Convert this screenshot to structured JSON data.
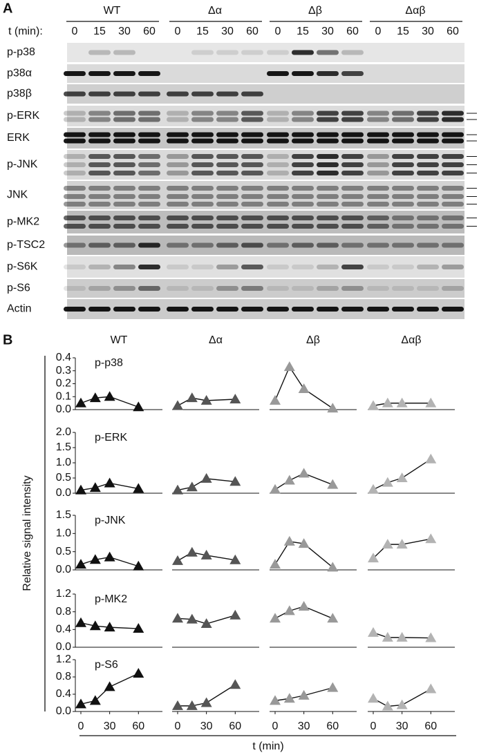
{
  "panel_a": {
    "label": "A",
    "groups": [
      "WT",
      "Δα",
      "Δβ",
      "Δαβ"
    ],
    "time_label": "t (min):",
    "times": [
      "0",
      "15",
      "30",
      "60"
    ],
    "rows": [
      "p-p38",
      "p38α",
      "p38β",
      "p-ERK",
      "ERK",
      "p-JNK",
      "JNK",
      "p-MK2",
      "p-TSC2",
      "p-S6K",
      "p-S6",
      "Actin"
    ]
  },
  "panel_b": {
    "label": "B",
    "ylabel": "Relative signal intensity",
    "xlabel": "t (min)"
  },
  "chart_data": [
    {
      "type": "line",
      "title": "p-p38",
      "x": [
        0,
        15,
        30,
        60
      ],
      "xlim": [
        0,
        85
      ],
      "ylim": [
        0,
        0.4
      ],
      "yticks": [
        {
          "value": 0,
          "label": "0.0"
        },
        0.1,
        0.2,
        0.3,
        0.4
      ],
      "series": [
        {
          "name": "WT",
          "color": "#111111",
          "values": [
            0.05,
            0.09,
            0.1,
            0.02
          ]
        },
        {
          "name": "Δα",
          "color": "#555555",
          "values": [
            0.03,
            0.09,
            0.07,
            0.08
          ]
        },
        {
          "name": "Δβ",
          "color": "#999999",
          "values": [
            0.07,
            0.33,
            0.16,
            0.01
          ]
        },
        {
          "name": "Δαβ",
          "color": "#b3b3b3",
          "values": [
            0.03,
            0.05,
            0.05,
            0.05
          ]
        }
      ]
    },
    {
      "type": "line",
      "title": "p-ERK",
      "x": [
        0,
        15,
        30,
        60
      ],
      "xlim": [
        0,
        85
      ],
      "ylim": [
        0,
        2
      ],
      "yticks": [
        {
          "value": 0,
          "label": "0.0"
        },
        0.5,
        {
          "value": 1,
          "label": "1.0"
        },
        1.5,
        {
          "value": 2,
          "label": "2.0"
        }
      ],
      "series": [
        {
          "name": "WT",
          "color": "#111111",
          "values": [
            0.1,
            0.18,
            0.33,
            0.15
          ]
        },
        {
          "name": "Δα",
          "color": "#555555",
          "values": [
            0.1,
            0.2,
            0.48,
            0.38
          ]
        },
        {
          "name": "Δβ",
          "color": "#999999",
          "values": [
            0.12,
            0.42,
            0.65,
            0.28
          ]
        },
        {
          "name": "Δαβ",
          "color": "#b3b3b3",
          "values": [
            0.12,
            0.35,
            0.5,
            1.12
          ]
        }
      ]
    },
    {
      "type": "line",
      "title": "p-JNK",
      "x": [
        0,
        15,
        30,
        60
      ],
      "xlim": [
        0,
        85
      ],
      "ylim": [
        0,
        1.5
      ],
      "yticks": [
        {
          "value": 0,
          "label": "0.0"
        },
        0.5,
        {
          "value": 1,
          "label": "1.0"
        },
        1.5
      ],
      "series": [
        {
          "name": "WT",
          "color": "#111111",
          "values": [
            0.15,
            0.28,
            0.35,
            0.1
          ]
        },
        {
          "name": "Δα",
          "color": "#555555",
          "values": [
            0.25,
            0.48,
            0.4,
            0.27
          ]
        },
        {
          "name": "Δβ",
          "color": "#999999",
          "values": [
            0.15,
            0.78,
            0.72,
            0.07
          ]
        },
        {
          "name": "Δαβ",
          "color": "#b3b3b3",
          "values": [
            0.32,
            0.7,
            0.7,
            0.85
          ]
        }
      ]
    },
    {
      "type": "line",
      "title": "p-MK2",
      "x": [
        0,
        15,
        30,
        60
      ],
      "xlim": [
        0,
        85
      ],
      "ylim": [
        0,
        1.2
      ],
      "yticks": [
        {
          "value": 0,
          "label": "0.0"
        },
        0.4,
        0.8,
        1.2
      ],
      "series": [
        {
          "name": "WT",
          "color": "#111111",
          "values": [
            0.55,
            0.48,
            0.45,
            0.42
          ]
        },
        {
          "name": "Δα",
          "color": "#555555",
          "values": [
            0.65,
            0.63,
            0.53,
            0.72
          ]
        },
        {
          "name": "Δβ",
          "color": "#999999",
          "values": [
            0.65,
            0.82,
            0.92,
            0.65
          ]
        },
        {
          "name": "Δαβ",
          "color": "#b3b3b3",
          "values": [
            0.33,
            0.22,
            0.22,
            0.21
          ]
        }
      ]
    },
    {
      "type": "line",
      "title": "p-S6",
      "x": [
        0,
        15,
        30,
        60
      ],
      "xlim": [
        0,
        85
      ],
      "ylim": [
        0,
        1.2
      ],
      "yticks": [
        {
          "value": 0,
          "label": "0.0"
        },
        0.4,
        0.8,
        1.2
      ],
      "xticks": [
        0,
        30,
        60
      ],
      "series": [
        {
          "name": "WT",
          "color": "#111111",
          "values": [
            0.17,
            0.25,
            0.57,
            0.88
          ]
        },
        {
          "name": "Δα",
          "color": "#555555",
          "values": [
            0.13,
            0.13,
            0.2,
            0.62
          ]
        },
        {
          "name": "Δβ",
          "color": "#999999",
          "values": [
            0.25,
            0.3,
            0.37,
            0.55
          ]
        },
        {
          "name": "Δαβ",
          "color": "#b3b3b3",
          "values": [
            0.3,
            0.12,
            0.15,
            0.52
          ]
        }
      ]
    }
  ]
}
